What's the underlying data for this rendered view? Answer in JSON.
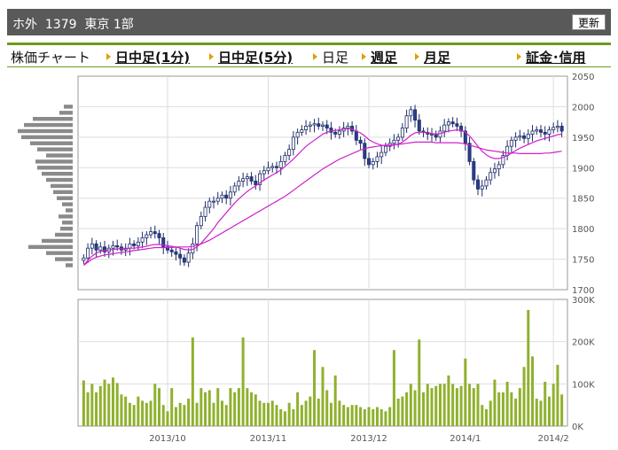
{
  "header": {
    "title": "ホ外  1379  東京 1部",
    "refresh_label": "更新"
  },
  "tabs": {
    "chart_label": "株価チャート",
    "intraday_1": "日中足(1分)",
    "intraday_5": "日中足(5分)",
    "daily": "日足",
    "weekly": "週足",
    "monthly": "月足",
    "margin": "証金･信用"
  },
  "colors": {
    "up_candle": "#ffffff",
    "down_candle": "#2a3e8f",
    "moving_avg": "#cc22cc",
    "volume_bar": "#8fb12e",
    "volume_profile": "#8a8a8a",
    "header_bg": "#595959",
    "tab_border": "#6a9a1f",
    "arrow": "#e0a000"
  },
  "chart_data": [
    {
      "type": "candlestick",
      "price_ticks": [
        "2050",
        "2000",
        "1950",
        "1900",
        "1850",
        "1800",
        "1750",
        "1700"
      ],
      "ylim": [
        1700,
        2050
      ],
      "x_tick_labels": [
        "2013/10",
        "2013/11",
        "2013/12",
        "2014/1",
        "2014/2"
      ],
      "grid": true,
      "close": [
        1752,
        1768,
        1775,
        1765,
        1770,
        1762,
        1768,
        1772,
        1770,
        1765,
        1768,
        1775,
        1772,
        1778,
        1785,
        1790,
        1795,
        1792,
        1785,
        1770,
        1765,
        1762,
        1758,
        1752,
        1745,
        1760,
        1775,
        1805,
        1820,
        1835,
        1845,
        1845,
        1850,
        1855,
        1850,
        1860,
        1870,
        1878,
        1882,
        1885,
        1878,
        1872,
        1890,
        1895,
        1900,
        1902,
        1900,
        1910,
        1920,
        1930,
        1950,
        1958,
        1962,
        1968,
        1970,
        1972,
        1968,
        1970,
        1965,
        1958,
        1955,
        1960,
        1965,
        1968,
        1960,
        1945,
        1940,
        1915,
        1905,
        1910,
        1918,
        1925,
        1935,
        1940,
        1945,
        1950,
        1965,
        1985,
        1995,
        1978,
        1960,
        1958,
        1955,
        1955,
        1950,
        1960,
        1970,
        1975,
        1972,
        1968,
        1960,
        1940,
        1910,
        1880,
        1865,
        1870,
        1880,
        1892,
        1898,
        1905,
        1920,
        1935,
        1945,
        1950,
        1952,
        1948,
        1955,
        1960,
        1962,
        1958,
        1955,
        1962,
        1966,
        1968,
        1960
      ],
      "moving_average": [
        1740,
        1748,
        1755,
        1760,
        1763,
        1764,
        1765,
        1766,
        1767,
        1767,
        1767,
        1768,
        1768,
        1769,
        1770,
        1771,
        1773,
        1774,
        1774,
        1773,
        1772,
        1771,
        1770,
        1768,
        1766,
        1765,
        1766,
        1770,
        1776,
        1784,
        1792,
        1800,
        1810,
        1818,
        1826,
        1834,
        1842,
        1849,
        1855,
        1861,
        1866,
        1870,
        1875,
        1880,
        1884,
        1888,
        1892,
        1896,
        1902,
        1908,
        1914,
        1921,
        1928,
        1935,
        1940,
        1945,
        1950,
        1955,
        1958,
        1960,
        1961,
        1962,
        1963,
        1964,
        1963,
        1960,
        1957,
        1952,
        1946,
        1942,
        1939,
        1937,
        1936,
        1936,
        1937,
        1939,
        1942,
        1947,
        1953,
        1957,
        1958,
        1958,
        1957,
        1956,
        1955,
        1956,
        1958,
        1960,
        1961,
        1962,
        1961,
        1958,
        1952,
        1944,
        1935,
        1927,
        1921,
        1917,
        1915,
        1915,
        1917,
        1920,
        1924,
        1928,
        1932,
        1935,
        1938,
        1941,
        1944,
        1946,
        1948,
        1950,
        1952,
        1954,
        1955
      ],
      "moving_average_2": [
        1740,
        1745,
        1750,
        1753,
        1755,
        1757,
        1758,
        1759,
        1760,
        1761,
        1762,
        1763,
        1764,
        1765,
        1766,
        1767,
        1768,
        1769,
        1769,
        1769,
        1769,
        1769,
        1770,
        1770,
        1770,
        1770,
        1771,
        1773,
        1775,
        1778,
        1781,
        1785,
        1789,
        1793,
        1797,
        1801,
        1805,
        1809,
        1813,
        1817,
        1821,
        1825,
        1829,
        1833,
        1837,
        1841,
        1845,
        1849,
        1853,
        1858,
        1863,
        1868,
        1873,
        1878,
        1883,
        1888,
        1893,
        1898,
        1902,
        1906,
        1910,
        1914,
        1917,
        1920,
        1923,
        1926,
        1929,
        1931,
        1933,
        1934,
        1935,
        1936,
        1937,
        1937,
        1938,
        1938,
        1939,
        1940,
        1941,
        1942,
        1942,
        1942,
        1942,
        1942,
        1941,
        1941,
        1941,
        1941,
        1941,
        1941,
        1940,
        1939,
        1937,
        1935,
        1933,
        1931,
        1929,
        1928,
        1927,
        1926,
        1925,
        1924,
        1924,
        1924,
        1923,
        1923,
        1923,
        1923,
        1923,
        1923,
        1924,
        1924,
        1925,
        1926,
        1927
      ],
      "ma_color": "#cc22cc"
    },
    {
      "type": "bar",
      "volume_ticks": [
        "300K",
        "200K",
        "100K",
        "0K"
      ],
      "ylim": [
        0,
        300000
      ],
      "values": [
        108000,
        80000,
        100000,
        80000,
        95000,
        110000,
        100000,
        115000,
        102000,
        75000,
        70000,
        55000,
        50000,
        70000,
        60000,
        55000,
        60000,
        100000,
        90000,
        50000,
        35000,
        90000,
        45000,
        55000,
        50000,
        65000,
        210000,
        55000,
        90000,
        80000,
        85000,
        55000,
        90000,
        60000,
        50000,
        90000,
        80000,
        90000,
        210000,
        90000,
        80000,
        75000,
        60000,
        55000,
        55000,
        60000,
        50000,
        40000,
        35000,
        55000,
        40000,
        80000,
        50000,
        60000,
        70000,
        180000,
        65000,
        140000,
        85000,
        55000,
        120000,
        60000,
        50000,
        45000,
        50000,
        50000,
        45000,
        40000,
        45000,
        40000,
        45000,
        40000,
        35000,
        45000,
        180000,
        65000,
        70000,
        80000,
        100000,
        85000,
        205000,
        80000,
        100000,
        90000,
        95000,
        100000,
        100000,
        120000,
        100000,
        90000,
        95000,
        160000,
        100000,
        90000,
        100000,
        50000,
        40000,
        60000,
        110000,
        80000,
        80000,
        105000,
        80000,
        65000,
        90000,
        140000,
        275000,
        165000,
        65000,
        60000,
        105000,
        70000,
        100000,
        145000,
        75000
      ],
      "color": "#8fb12e"
    },
    {
      "type": "bar",
      "orientation": "horizontal",
      "name": "volume-profile",
      "price_levels": [
        2000,
        1990,
        1980,
        1970,
        1960,
        1950,
        1940,
        1930,
        1920,
        1910,
        1900,
        1890,
        1880,
        1870,
        1860,
        1850,
        1840,
        1830,
        1820,
        1810,
        1800,
        1790,
        1780,
        1770,
        1760,
        1750,
        1740
      ],
      "values": [
        10,
        15,
        45,
        55,
        62,
        58,
        48,
        40,
        30,
        42,
        40,
        35,
        30,
        25,
        22,
        18,
        12,
        8,
        16,
        12,
        14,
        20,
        35,
        50,
        30,
        20,
        8
      ],
      "color": "#8a8a8a"
    }
  ]
}
